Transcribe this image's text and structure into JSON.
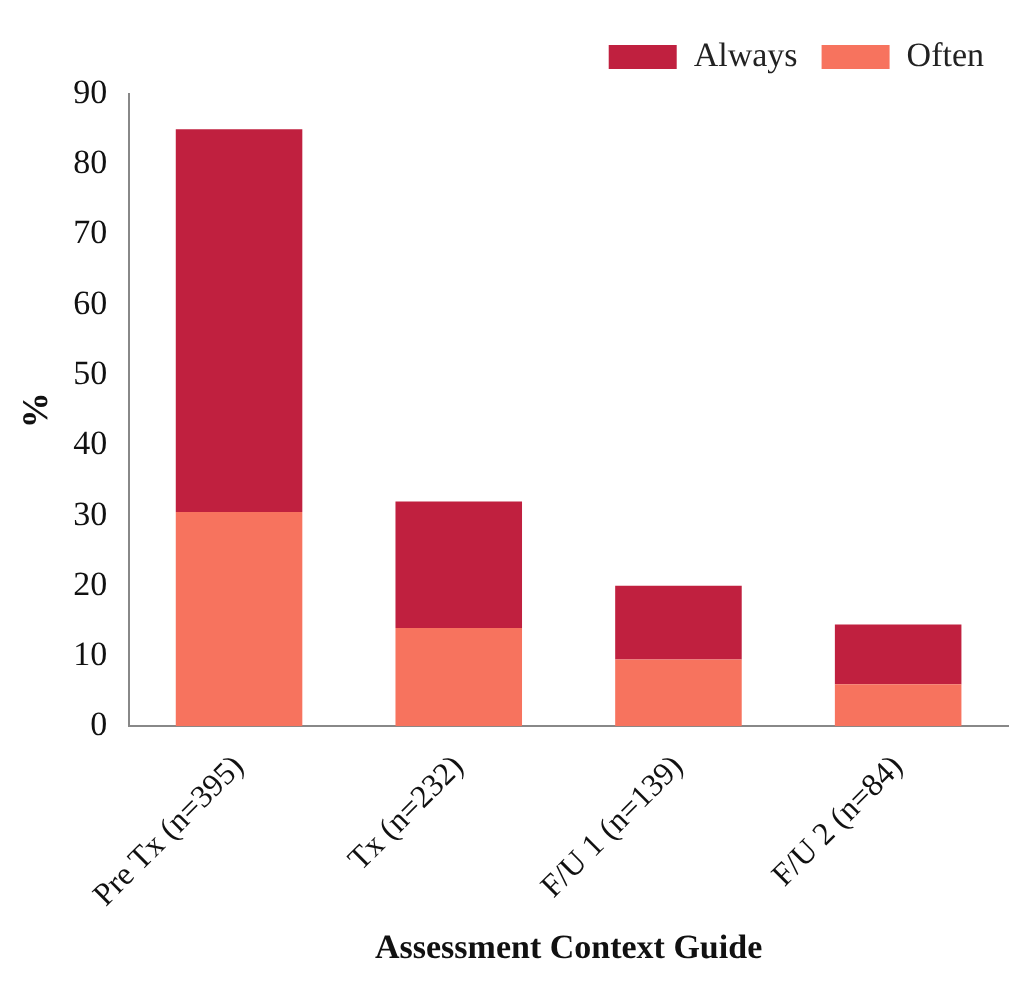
{
  "chart_data": {
    "type": "bar",
    "stacked": true,
    "xlabel": "Assessment Context Guide",
    "ylabel": "%",
    "categories": [
      "Pre Tx (n=395)",
      "Tx (n=232)",
      "F/U 1 (n=139)",
      "F/U 2 (n=84)"
    ],
    "series": [
      {
        "name": "Often",
        "color": "#f7735e",
        "values": [
          30.5,
          14,
          9.5,
          6
        ]
      },
      {
        "name": "Always",
        "color": "#c0203f",
        "values": [
          54.5,
          18,
          10.5,
          8.5
        ]
      }
    ],
    "ylim": [
      0,
      90
    ],
    "yticks": [
      0,
      10,
      20,
      30,
      40,
      50,
      60,
      70,
      80,
      90
    ],
    "grid": false,
    "legend": "top right"
  }
}
